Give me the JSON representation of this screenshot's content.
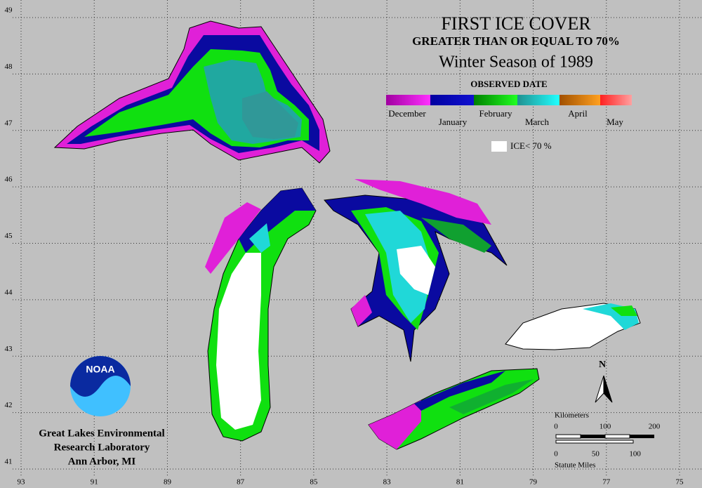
{
  "map": {
    "title": "FIRST ICE COVER",
    "subtitle": "GREATER THAN OR EQUAL TO 70%",
    "season": "Winter Season of 1989",
    "legend": {
      "title": "OBSERVED DATE",
      "months": [
        "December",
        "January",
        "February",
        "March",
        "April",
        "May"
      ],
      "low_ice": "ICE< 70 %"
    },
    "longitudes": [
      93,
      91,
      89,
      87,
      85,
      83,
      81,
      79,
      77,
      75
    ],
    "latitudes": [
      49,
      48,
      47,
      46,
      45,
      44,
      43,
      42,
      41
    ],
    "xlim": [
      93,
      75
    ],
    "ylim": [
      41,
      49
    ],
    "north": "N",
    "scale": {
      "km_label": "Kilometers",
      "km_ticks": [
        0,
        100,
        200
      ],
      "mi_ticks": [
        0,
        50,
        100
      ],
      "mi_label": "Statute Miles"
    },
    "logo": "NOAA",
    "credit": [
      "Great Lakes Environmental",
      "Research Laboratory",
      "Ann Arbor, MI"
    ]
  }
}
